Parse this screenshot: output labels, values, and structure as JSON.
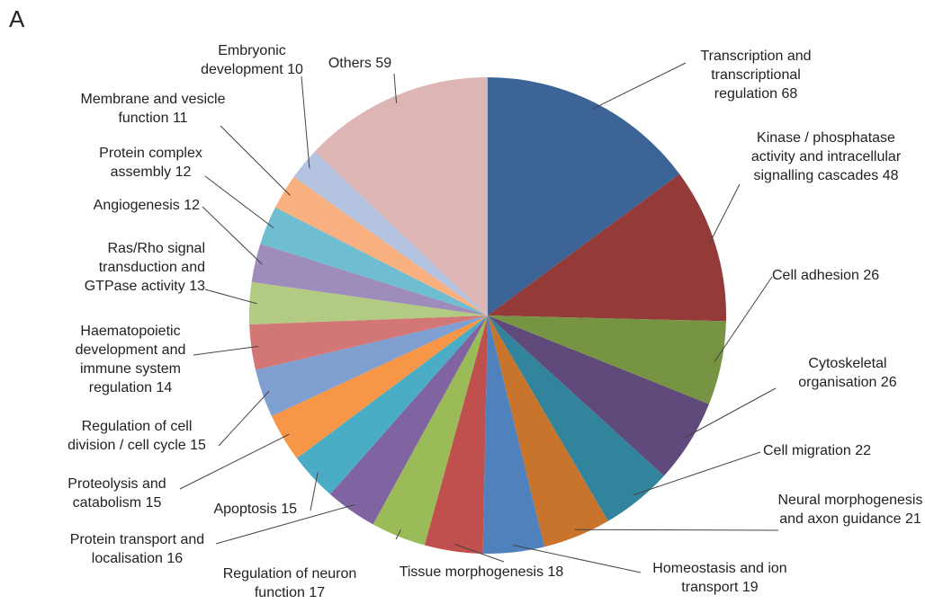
{
  "chart_data": {
    "type": "pie",
    "panel_label": "A",
    "categories": [
      "Transcription and transcriptional regulation",
      "Kinase / phosphatase activity and intracellular signalling cascades",
      "Cell adhesion",
      "Cytoskeletal organisation",
      "Cell migration",
      "Neural morphogenesis and axon guidance",
      "Homeostasis and ion transport",
      "Tissue morphogenesis",
      "Regulation of neuron function",
      "Protein transport and localisation",
      "Apoptosis",
      "Proteolysis and catabolism",
      "Regulation of cell division / cell cycle",
      "Haematopoietic development and immune system regulation",
      "Ras/Rho signal transduction and GTPase activity",
      "Angiogenesis",
      "Protein complex assembly",
      "Membrane and vesicle function",
      "Embryonic development",
      "Others"
    ],
    "values": [
      68,
      48,
      26,
      26,
      22,
      21,
      19,
      18,
      17,
      16,
      15,
      15,
      15,
      14,
      13,
      12,
      12,
      11,
      10,
      59
    ],
    "colors": [
      "#3c6496",
      "#943b3a",
      "#779443",
      "#604a7b",
      "#31849b",
      "#c8742d",
      "#4f81bd",
      "#c0504d",
      "#9bbb59",
      "#8064a2",
      "#4bacc6",
      "#f79646",
      "#7f9fd0",
      "#d27775",
      "#b3ca82",
      "#9e8cba",
      "#6fbdd1",
      "#f9b081",
      "#b4c4e0",
      "#dcb5b4"
    ]
  }
}
